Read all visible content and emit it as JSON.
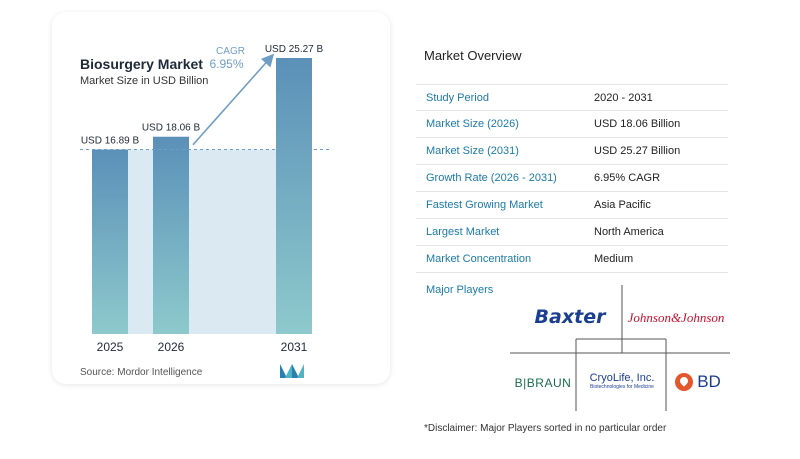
{
  "chart_data": {
    "type": "bar",
    "title": "Biosurgery Market",
    "subtitle": "Market Size in USD Billion",
    "categories": [
      "2025",
      "2026",
      "2031"
    ],
    "values": [
      16.89,
      18.06,
      25.27
    ],
    "value_labels": [
      "USD 16.89 B",
      "USD 18.06 B",
      "USD 25.27 B"
    ],
    "ylim": [
      0,
      26
    ],
    "baseline_value": 16.89,
    "cagr_label": "CAGR",
    "cagr_value": "6.95%",
    "bar_color_top": "#5b90b8",
    "bar_color_bottom": "#8ec9cc",
    "shade_color": "#dbe9f3",
    "arrow_color": "#6f9ec4",
    "legend": "none",
    "grid": false
  },
  "source": "Source:  Mordor Intelligence",
  "overview": {
    "title": "Market Overview",
    "rows": [
      {
        "label": "Study Period",
        "value": "2020 - 2031"
      },
      {
        "label": "Market Size (2026)",
        "value": "USD 18.06 Billion"
      },
      {
        "label": "Market Size (2031)",
        "value": "USD 25.27 Billion"
      },
      {
        "label": "Growth Rate (2026 - 2031)",
        "value": "6.95% CAGR"
      },
      {
        "label": "Fastest Growing Market",
        "value": "Asia Pacific"
      },
      {
        "label": "Largest Market",
        "value": "North America"
      },
      {
        "label": "Market Concentration",
        "value": "Medium"
      }
    ],
    "players_label": "Major Players",
    "players": {
      "baxter": "Baxter",
      "jnj": "Johnson&Johnson",
      "bbraun": "B|BRAUN",
      "cryolife": "CryoLife, Inc.",
      "cryolife_tagline": "Biotechnologies for Medicine",
      "bd": "BD"
    },
    "disclaimer": "*Disclaimer: Major Players sorted in no particular order"
  }
}
